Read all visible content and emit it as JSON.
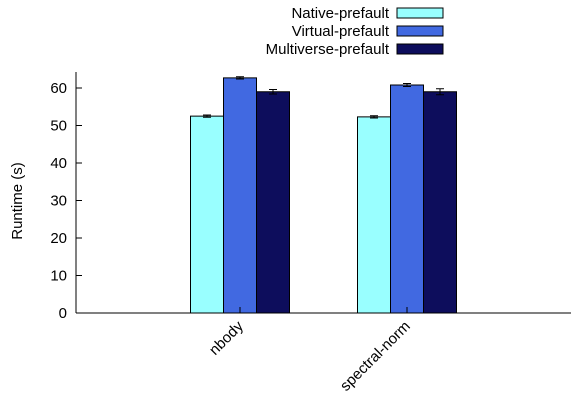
{
  "chart_data": {
    "type": "bar",
    "categories": [
      "nbody",
      "spectral-norm"
    ],
    "series": [
      {
        "name": "Native-prefault",
        "values": [
          52.5,
          52.3
        ],
        "errors": [
          0.3,
          0.3
        ],
        "color": "#99ffff"
      },
      {
        "name": "Virtual-prefault",
        "values": [
          62.7,
          60.8
        ],
        "errors": [
          0.3,
          0.4
        ],
        "color": "#4169e1"
      },
      {
        "name": "Multiverse-prefault",
        "values": [
          59.0,
          59.0
        ],
        "errors": [
          0.6,
          0.8
        ],
        "color": "#0d0d5c"
      }
    ],
    "title": "",
    "xlabel": "",
    "ylabel": "Runtime (s)",
    "ylim": [
      0,
      60
    ],
    "yticks": [
      0,
      10,
      20,
      30,
      40,
      50,
      60
    ],
    "grid": false,
    "legend_position": "top-right"
  }
}
